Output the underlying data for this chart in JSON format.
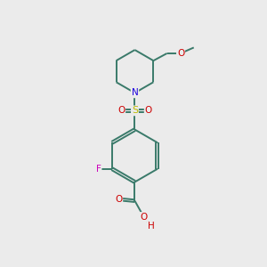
{
  "background_color": "#ebebeb",
  "bond_color": "#3a7a6a",
  "atom_colors": {
    "N": "#1a00dd",
    "O": "#cc0000",
    "F": "#cc00bb",
    "S": "#bbbb00",
    "C": "#3a7a6a",
    "H": "#cc0000"
  },
  "fig_width": 3.0,
  "fig_height": 3.0,
  "dpi": 100,
  "lw": 1.4,
  "fontsize": 7.5
}
